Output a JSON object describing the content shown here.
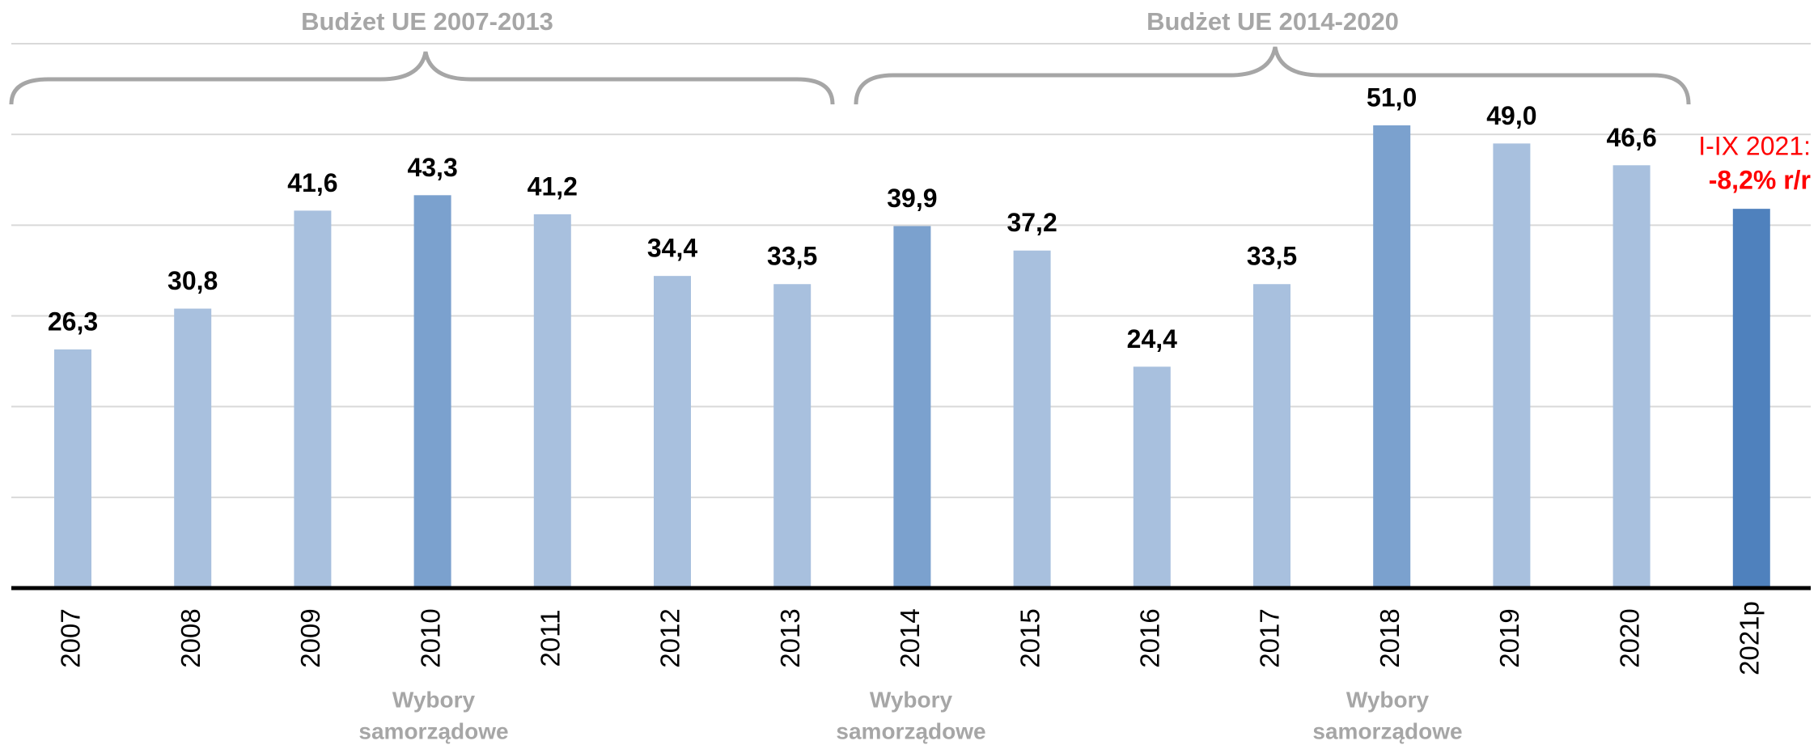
{
  "chart_data": {
    "type": "bar",
    "categories": [
      "2007",
      "2008",
      "2009",
      "2010",
      "2011",
      "2012",
      "2013",
      "2014",
      "2015",
      "2016",
      "2017",
      "2018",
      "2019",
      "2020",
      "2021p"
    ],
    "values": [
      26.3,
      30.8,
      41.6,
      43.3,
      41.2,
      34.4,
      33.5,
      39.9,
      37.2,
      24.4,
      33.5,
      51.0,
      49.0,
      46.6,
      41.8
    ],
    "value_labels": [
      "26,3",
      "30,8",
      "41,6",
      "43,3",
      "41,2",
      "34,4",
      "33,5",
      "39,9",
      "37,2",
      "24,4",
      "33,5",
      "51,0",
      "49,0",
      "46,6",
      null
    ],
    "colors": [
      "#a8c0de",
      "#a8c0de",
      "#a8c0de",
      "#7ba1ce",
      "#a8c0de",
      "#a8c0de",
      "#a8c0de",
      "#7ba1ce",
      "#a8c0de",
      "#a8c0de",
      "#a8c0de",
      "#7ba1ce",
      "#a8c0de",
      "#a8c0de",
      "#4f81bd"
    ],
    "ylim": [
      0,
      60
    ],
    "yticks": [
      0,
      10,
      20,
      30,
      40,
      50,
      60
    ],
    "grid": true,
    "annotations": {
      "budget_1": "Budżet UE 2007-2013",
      "budget_2": "Budżet UE 2014-2020",
      "note_line1": "I-IX 2021:",
      "note_line2": "-8,2% r/r",
      "elections": [
        [
          "Wybory",
          "samorządowe"
        ],
        [
          "Wybory",
          "samorządowe"
        ],
        [
          "Wybory",
          "samorządowe"
        ]
      ]
    }
  }
}
